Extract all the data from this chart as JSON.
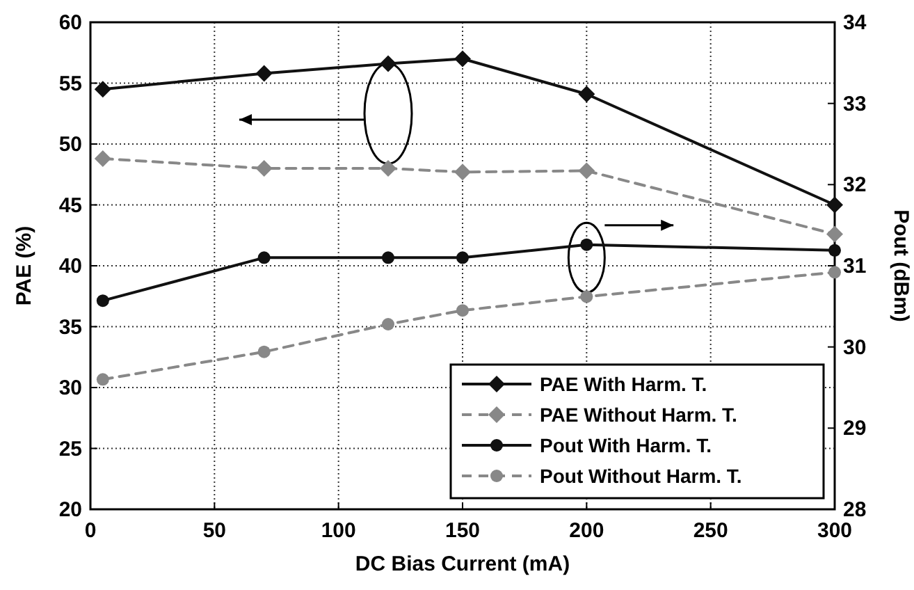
{
  "chart_data": {
    "type": "line",
    "xlabel": "DC Bias Current (mA)",
    "ylabel": "PAE (%)",
    "y2label": "Pout (dBm)",
    "x": [
      5,
      70,
      120,
      150,
      200,
      300
    ],
    "xlim": [
      0,
      300
    ],
    "xticks": [
      0,
      50,
      100,
      150,
      200,
      250,
      300
    ],
    "ylim": [
      20,
      60
    ],
    "yticks": [
      20,
      25,
      30,
      35,
      40,
      45,
      50,
      55,
      60
    ],
    "y2lim": [
      28,
      34
    ],
    "y2ticks": [
      28,
      29,
      30,
      31,
      32,
      33,
      34
    ],
    "grid": true,
    "legend": "bottom right",
    "series": [
      {
        "name": "PAE With Harm. T.",
        "color": "#111111",
        "marker": "diamond",
        "line_style": "solid",
        "values": [
          54.5,
          55.8,
          56.6,
          57.0,
          54.1,
          45.0
        ]
      },
      {
        "name": "PAE Without Harm. T.",
        "color": "#888888",
        "marker": "diamond",
        "line_style": "dashed",
        "values": [
          48.8,
          48.0,
          48.0,
          47.7,
          47.8,
          42.6
        ]
      },
      {
        "name": "Pout With Harm. T.",
        "color": "#111111",
        "marker": "circle",
        "line_style": "solid",
        "axis": "y2",
        "values": [
          30.57,
          31.1,
          31.1,
          31.1,
          31.26,
          31.19
        ]
      },
      {
        "name": "Pout Without Harm. T.",
        "color": "#888888",
        "marker": "circle",
        "line_style": "dashed",
        "axis": "y2",
        "values": [
          29.6,
          29.94,
          30.28,
          30.45,
          30.62,
          30.92
        ]
      }
    ]
  }
}
